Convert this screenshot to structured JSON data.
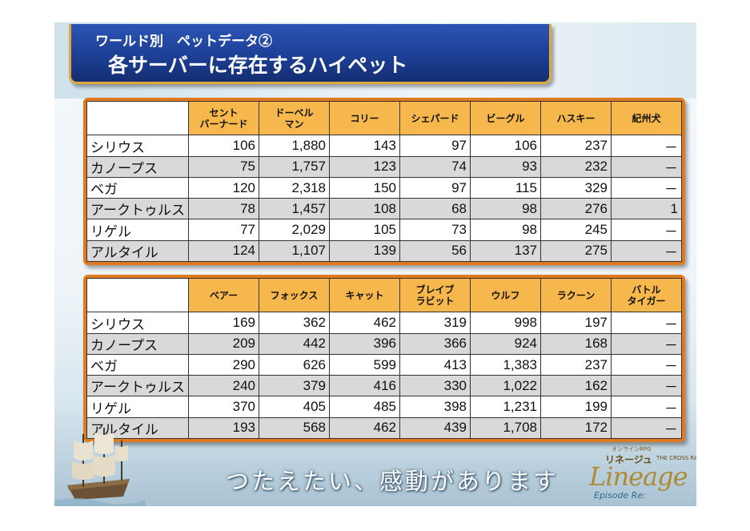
{
  "title": {
    "sub": "ワールド別　ペットデータ②",
    "main": "各サーバーに存在するハイペット"
  },
  "table1": {
    "headers": [
      [
        "セント",
        "バーナード"
      ],
      [
        "ドーベル",
        "マン"
      ],
      [
        "コリー"
      ],
      [
        "シェパード"
      ],
      [
        "ビーグル"
      ],
      [
        "ハスキー"
      ],
      [
        "紀州犬"
      ]
    ],
    "rows": [
      {
        "name": "シリウス",
        "values": [
          "106",
          "1,880",
          "143",
          "97",
          "106",
          "237",
          "－"
        ]
      },
      {
        "name": "カノープス",
        "values": [
          "75",
          "1,757",
          "123",
          "74",
          "93",
          "232",
          "－"
        ]
      },
      {
        "name": "ベガ",
        "values": [
          "120",
          "2,318",
          "150",
          "97",
          "115",
          "329",
          "－"
        ]
      },
      {
        "name": "アークトゥルス",
        "values": [
          "78",
          "1,457",
          "108",
          "68",
          "98",
          "276",
          "1"
        ]
      },
      {
        "name": "リゲル",
        "values": [
          "77",
          "2,029",
          "105",
          "73",
          "98",
          "245",
          "－"
        ]
      },
      {
        "name": "アルタイル",
        "values": [
          "124",
          "1,107",
          "139",
          "56",
          "137",
          "275",
          "－"
        ]
      }
    ]
  },
  "table2": {
    "headers": [
      [
        "ベアー"
      ],
      [
        "フォックス"
      ],
      [
        "キャット"
      ],
      [
        "ブレイブ",
        "ラビット"
      ],
      [
        "ウルフ"
      ],
      [
        "ラクーン"
      ],
      [
        "バトル",
        "タイガー"
      ]
    ],
    "rows": [
      {
        "name": "シリウス",
        "values": [
          "169",
          "362",
          "462",
          "319",
          "998",
          "197",
          "－"
        ]
      },
      {
        "name": "カノープス",
        "values": [
          "209",
          "442",
          "396",
          "366",
          "924",
          "168",
          "－"
        ]
      },
      {
        "name": "ベガ",
        "values": [
          "290",
          "626",
          "599",
          "413",
          "1,383",
          "237",
          "－"
        ]
      },
      {
        "name": "アークトゥルス",
        "values": [
          "240",
          "379",
          "416",
          "330",
          "1,022",
          "162",
          "－"
        ]
      },
      {
        "name": "リゲル",
        "values": [
          "370",
          "405",
          "485",
          "398",
          "1,231",
          "199",
          "－"
        ]
      },
      {
        "name": "アルタイル",
        "values": [
          "193",
          "568",
          "462",
          "439",
          "1,708",
          "172",
          "－"
        ]
      }
    ]
  },
  "footer": {
    "caption": "つたえたい、感動があります",
    "logo_ruby": "オンラインRPG",
    "logo_kana": "リネージュ",
    "logo_sub": "THE CROSS RANCOR",
    "logo_word": "Lineage",
    "logo_episode": "Episode Re:"
  }
}
